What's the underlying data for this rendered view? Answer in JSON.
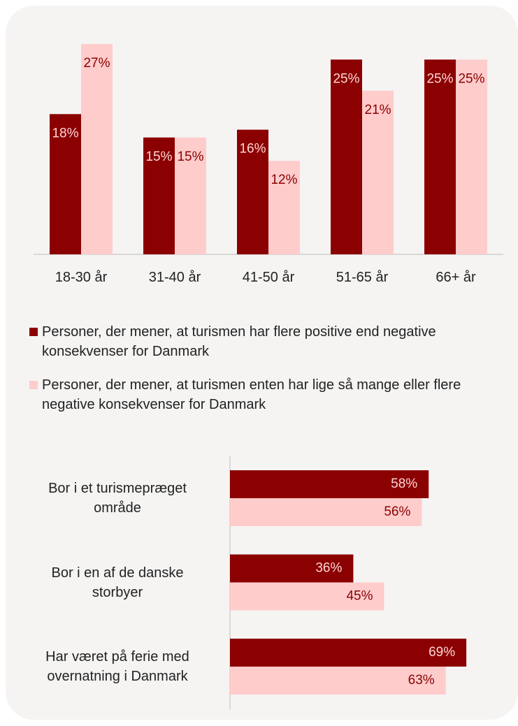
{
  "chart_data": [
    {
      "type": "bar",
      "categories": [
        "18-30 år",
        "31-40 år",
        "41-50 år",
        "51-65 år",
        "66+ år"
      ],
      "series": [
        {
          "name": "Personer, der mener, at turismen har flere positive end negative konsekvenser for Danmark",
          "color": "#8b0000",
          "values": [
            18,
            15,
            16,
            25,
            25
          ],
          "value_labels": [
            "18%",
            "15%",
            "16%",
            "25%",
            "25%"
          ]
        },
        {
          "name": "Personer, der mener, at turismen enten har lige så mange eller flere negative konsekvenser for Danmark",
          "color": "#ffcccc",
          "values": [
            27,
            15,
            12,
            21,
            25
          ],
          "value_labels": [
            "27%",
            "15%",
            "12%",
            "21%",
            "25%"
          ]
        }
      ]
    },
    {
      "type": "hbar",
      "categories": [
        "Bor i et turismepræget område",
        "Bor i en af de danske storbyer",
        "Har været på ferie med overnatning i Danmark"
      ],
      "series": [
        {
          "color": "#8b0000",
          "values": [
            58,
            36,
            69
          ],
          "value_labels": [
            "58%",
            "36%",
            "69%"
          ]
        },
        {
          "color": "#ffcccc",
          "values": [
            56,
            45,
            63
          ],
          "value_labels": [
            "56%",
            "45%",
            "63%"
          ]
        }
      ]
    }
  ]
}
